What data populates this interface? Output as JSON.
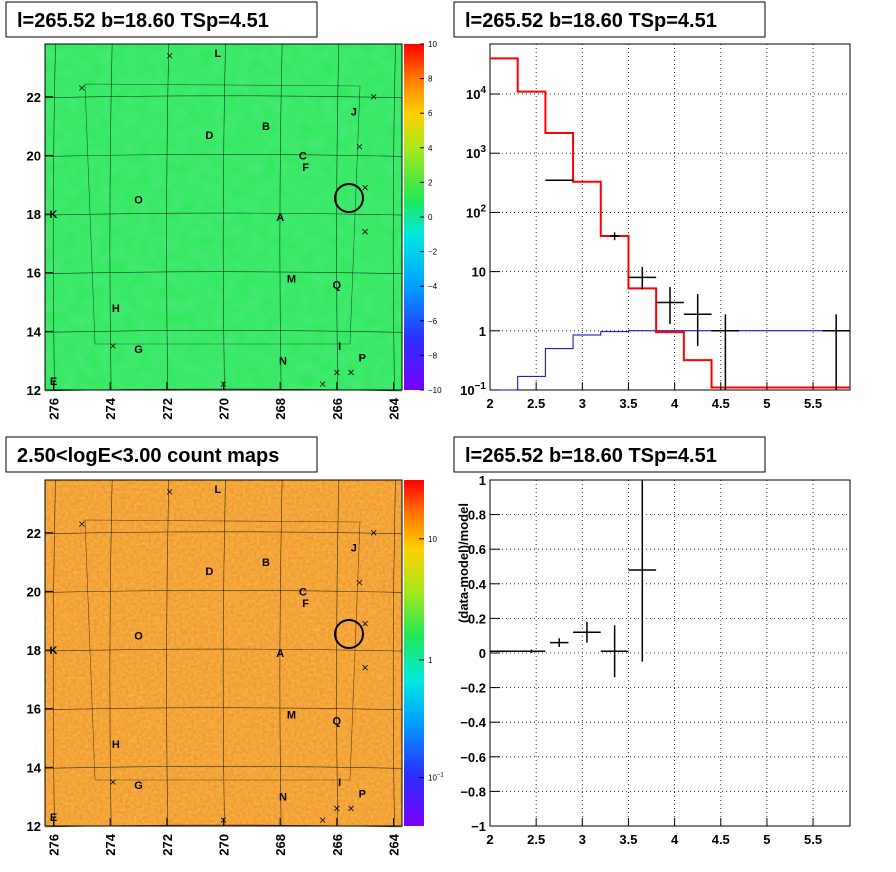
{
  "panels": {
    "top_left_title": "l=265.52 b=18.60 TSp=4.51",
    "top_right_title": "l=265.52 b=18.60 TSp=4.51",
    "bottom_left_title": "2.50<logE<3.00 count maps",
    "bottom_right_title": "l=265.52 b=18.60 TSp=4.51"
  },
  "colors": {
    "map_bg_top": "#2ee85a",
    "map_bg_bottom": "#f08a2e",
    "data": "#000000",
    "model": "#ff0000",
    "background": "#0000cc",
    "grid": "#000000"
  },
  "chart_data": [
    {
      "type": "heatmap",
      "name": "residual-map",
      "xlabel": "",
      "ylabel": "",
      "xlim": [
        276.3,
        263.7
      ],
      "ylim": [
        12,
        23.8
      ],
      "xticks": [
        "276",
        "274",
        "272",
        "270",
        "268",
        "266",
        "264"
      ],
      "yticks": [
        "12",
        "14",
        "16",
        "18",
        "20",
        "22"
      ],
      "colorbar": {
        "min": -10,
        "max": 10,
        "ticks": [
          "10",
          "8",
          "6",
          "4",
          "2",
          "0",
          "−2",
          "−4",
          "−6",
          "−8",
          "−10"
        ]
      },
      "sources": [
        {
          "label": "L",
          "l": 270.2,
          "b": 23.5
        },
        {
          "label": "J",
          "l": 265.4,
          "b": 21.5
        },
        {
          "label": "B",
          "l": 268.5,
          "b": 21.0
        },
        {
          "label": "D",
          "l": 270.5,
          "b": 20.7
        },
        {
          "label": "C",
          "l": 267.2,
          "b": 20.0
        },
        {
          "label": "F",
          "l": 267.1,
          "b": 19.6
        },
        {
          "label": "O",
          "l": 273.0,
          "b": 18.5
        },
        {
          "label": "K",
          "l": 276.0,
          "b": 18.0
        },
        {
          "label": "A",
          "l": 268.0,
          "b": 17.9
        },
        {
          "label": "M",
          "l": 267.6,
          "b": 15.8
        },
        {
          "label": "Q",
          "l": 266.0,
          "b": 15.6
        },
        {
          "label": "H",
          "l": 273.8,
          "b": 14.8
        },
        {
          "label": "G",
          "l": 273.0,
          "b": 13.4
        },
        {
          "label": "N",
          "l": 267.9,
          "b": 13.0
        },
        {
          "label": "I",
          "l": 265.9,
          "b": 13.5
        },
        {
          "label": "P",
          "l": 265.1,
          "b": 13.1
        },
        {
          "label": "E",
          "l": 276.0,
          "b": 12.3
        }
      ],
      "target": {
        "l": 265.52,
        "b": 18.6
      }
    },
    {
      "type": "line",
      "name": "spectrum",
      "xlim": [
        2,
        5.9
      ],
      "ylim": [
        0.1,
        70000
      ],
      "log_y": true,
      "grid": true,
      "xticks": [
        "2",
        "2.5",
        "3",
        "3.5",
        "4",
        "4.5",
        "5",
        "5.5"
      ],
      "yticks": [
        {
          "v": 0.1,
          "t": "10−1"
        },
        {
          "v": 1,
          "t": "1"
        },
        {
          "v": 10,
          "t": "10"
        },
        {
          "v": 100,
          "t": "102"
        },
        {
          "v": 1000,
          "t": "103"
        },
        {
          "v": 10000,
          "t": "104"
        }
      ],
      "model_edges": [
        2,
        2.3,
        2.6,
        2.9,
        3.2,
        3.5,
        3.8,
        4.1,
        4.4,
        4.7,
        5.0,
        5.3,
        5.6,
        5.9
      ],
      "model": [
        40000,
        11000,
        2200,
        330,
        40,
        5.2,
        0.95,
        0.32,
        0.11,
        0.11,
        0.11,
        0.11,
        0.11
      ],
      "background_model": [
        0.09,
        0.17,
        0.5,
        0.85,
        0.97,
        1.0,
        1.0,
        1.0,
        1.0,
        1.0,
        1.0,
        1.0,
        1.0
      ],
      "data_points": [
        {
          "x": 2.75,
          "y": 350,
          "xerr": 0.15,
          "ylo": 340,
          "yhi": 360
        },
        {
          "x": 3.35,
          "y": 40,
          "xerr": 0.05,
          "ylo": 34,
          "yhi": 46
        },
        {
          "x": 3.65,
          "y": 8,
          "xerr": 0.15,
          "ylo": 5,
          "yhi": 12
        },
        {
          "x": 3.95,
          "y": 3,
          "xerr": 0.15,
          "ylo": 1.3,
          "yhi": 5.5
        },
        {
          "x": 4.25,
          "y": 1.9,
          "xerr": 0.15,
          "ylo": 0.55,
          "yhi": 4.2
        },
        {
          "x": 4.55,
          "y": 1.0,
          "xerr": 0.15,
          "ylo": 0.1,
          "yhi": 1.9
        },
        {
          "x": 5.75,
          "y": 1.0,
          "xerr": 0.15,
          "ylo": 0.1,
          "yhi": 1.9
        }
      ]
    },
    {
      "type": "heatmap",
      "name": "count-map",
      "xlim": [
        276.3,
        263.7
      ],
      "ylim": [
        12,
        23.8
      ],
      "xticks": [
        "276",
        "274",
        "272",
        "270",
        "268",
        "266",
        "264"
      ],
      "yticks": [
        "12",
        "14",
        "16",
        "18",
        "20",
        "22"
      ],
      "colorbar": {
        "log": true,
        "ticks": [
          "10",
          "1",
          "10−1"
        ]
      }
    },
    {
      "type": "scatter",
      "name": "residuals",
      "ylabel": "(data-model)/model",
      "xlim": [
        2,
        5.9
      ],
      "ylim": [
        -1,
        1
      ],
      "grid": true,
      "xticks": [
        "2",
        "2.5",
        "3",
        "3.5",
        "4",
        "4.5",
        "5",
        "5.5"
      ],
      "yticks": [
        "1",
        "0.8",
        "0.6",
        "0.4",
        "0.2",
        "0",
        "−0.2",
        "−0.4",
        "−0.6",
        "−0.8",
        "−1"
      ],
      "points": [
        {
          "x": 2.15,
          "y": 0.01,
          "xerr": 0.15,
          "yerr": 0.005
        },
        {
          "x": 2.45,
          "y": 0.01,
          "xerr": 0.15,
          "yerr": 0.01
        },
        {
          "x": 2.75,
          "y": 0.06,
          "xerr": 0.1,
          "yerr": 0.025
        },
        {
          "x": 3.05,
          "y": 0.12,
          "xerr": 0.15,
          "yerr": 0.06
        },
        {
          "x": 3.35,
          "y": 0.01,
          "xerr": 0.15,
          "yerr": 0.15
        },
        {
          "x": 3.65,
          "y": 0.48,
          "xerr": 0.15,
          "yerr": 0.53
        }
      ]
    }
  ]
}
